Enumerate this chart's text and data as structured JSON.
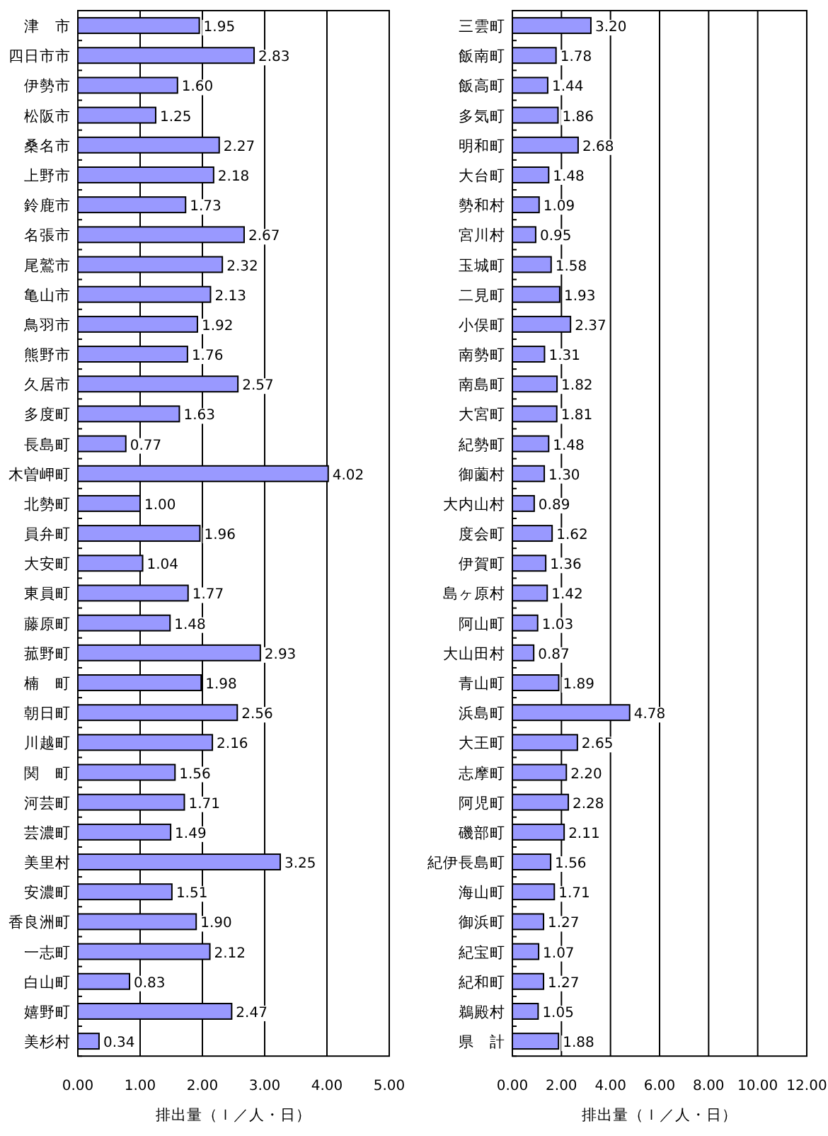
{
  "chart_data": [
    {
      "type": "bar",
      "orientation": "horizontal",
      "color": "#9999ff",
      "grid": "x",
      "xlabel": "排出量（ｌ／人・日）",
      "categories": [
        "津　市",
        "四日市市",
        "伊勢市",
        "松阪市",
        "桑名市",
        "上野市",
        "鈴鹿市",
        "名張市",
        "尾鷲市",
        "亀山市",
        "鳥羽市",
        "熊野市",
        "久居市",
        "多度町",
        "長島町",
        "木曽岬町",
        "北勢町",
        "員弁町",
        "大安町",
        "東員町",
        "藤原町",
        "菰野町",
        "楠　町",
        "朝日町",
        "川越町",
        "関　町",
        "河芸町",
        "芸濃町",
        "美里村",
        "安濃町",
        "香良洲町",
        "一志町",
        "白山町",
        "嬉野町",
        "美杉村"
      ],
      "values": [
        1.95,
        2.83,
        1.6,
        1.25,
        2.27,
        2.18,
        1.73,
        2.67,
        2.32,
        2.13,
        1.92,
        1.76,
        2.57,
        1.63,
        0.77,
        4.02,
        1.0,
        1.96,
        1.04,
        1.77,
        1.48,
        2.93,
        1.98,
        2.56,
        2.16,
        1.56,
        1.71,
        1.49,
        3.25,
        1.51,
        1.9,
        2.12,
        0.83,
        2.47,
        0.34
      ],
      "value_labels": [
        "1.95",
        "2.83",
        "1.60",
        "1.25",
        "2.27",
        "2.18",
        "1.73",
        "2.67",
        "2.32",
        "2.13",
        "1.92",
        "1.76",
        "2.57",
        "1.63",
        "0.77",
        "4.02",
        "1.00",
        "1.96",
        "1.04",
        "1.77",
        "1.48",
        "2.93",
        "1.98",
        "2.56",
        "2.16",
        "1.56",
        "1.71",
        "1.49",
        "3.25",
        "1.51",
        "1.90",
        "2.12",
        "0.83",
        "2.47",
        "0.34"
      ],
      "xlim": [
        0,
        5
      ],
      "xticks": [
        {
          "value": 0,
          "label": "0.00"
        },
        {
          "value": 1,
          "label": "1.00"
        },
        {
          "value": 2,
          "label": "2.00"
        },
        {
          "value": 3,
          "label": "3.00"
        },
        {
          "value": 4,
          "label": "4.00"
        },
        {
          "value": 5,
          "label": "5.00"
        }
      ]
    },
    {
      "type": "bar",
      "orientation": "horizontal",
      "color": "#9999ff",
      "grid": "x",
      "xlabel": "排出量（ｌ／人・日）",
      "categories": [
        "三雲町",
        "飯南町",
        "飯高町",
        "多気町",
        "明和町",
        "大台町",
        "勢和村",
        "宮川村",
        "玉城町",
        "二見町",
        "小俣町",
        "南勢町",
        "南島町",
        "大宮町",
        "紀勢町",
        "御薗村",
        "大内山村",
        "度会町",
        "伊賀町",
        "島ヶ原村",
        "阿山町",
        "大山田村",
        "青山町",
        "浜島町",
        "大王町",
        "志摩町",
        "阿児町",
        "磯部町",
        "紀伊長島町",
        "海山町",
        "御浜町",
        "紀宝町",
        "紀和町",
        "鵜殿村",
        "県　計"
      ],
      "values": [
        3.2,
        1.78,
        1.44,
        1.86,
        2.68,
        1.48,
        1.09,
        0.95,
        1.58,
        1.93,
        2.37,
        1.31,
        1.82,
        1.81,
        1.48,
        1.3,
        0.89,
        1.62,
        1.36,
        1.42,
        1.03,
        0.87,
        1.89,
        4.78,
        2.65,
        2.2,
        2.28,
        2.11,
        1.56,
        1.71,
        1.27,
        1.07,
        1.27,
        1.05,
        1.88
      ],
      "value_labels": [
        "3.20",
        "1.78",
        "1.44",
        "1.86",
        "2.68",
        "1.48",
        "1.09",
        "0.95",
        "1.58",
        "1.93",
        "2.37",
        "1.31",
        "1.82",
        "1.81",
        "1.48",
        "1.30",
        "0.89",
        "1.62",
        "1.36",
        "1.42",
        "1.03",
        "0.87",
        "1.89",
        "4.78",
        "2.65",
        "2.20",
        "2.28",
        "2.11",
        "1.56",
        "1.71",
        "1.27",
        "1.07",
        "1.27",
        "1.05",
        "1.88"
      ],
      "xlim": [
        0,
        12
      ],
      "xticks": [
        {
          "value": 0,
          "label": "0.00"
        },
        {
          "value": 2,
          "label": "2.00"
        },
        {
          "value": 4,
          "label": "4.00"
        },
        {
          "value": 6,
          "label": "6.00"
        },
        {
          "value": 8,
          "label": "8.00"
        },
        {
          "value": 10,
          "label": "10.00"
        },
        {
          "value": 12,
          "label": "12.00"
        }
      ]
    }
  ]
}
